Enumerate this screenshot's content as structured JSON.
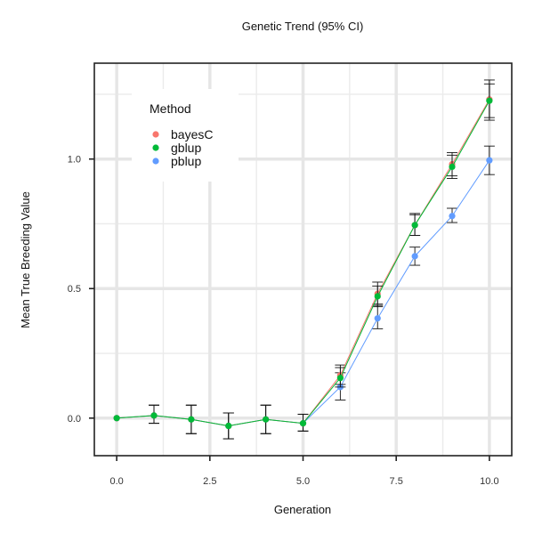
{
  "chart_data": {
    "type": "line",
    "title": "Genetic Trend (95% CI)",
    "xlabel": "Generation",
    "ylabel": "Mean True Breeding Value",
    "xlim": [
      -0.6,
      10.6
    ],
    "ylim": [
      -0.145,
      1.37
    ],
    "xticks": [
      0,
      2.5,
      5,
      7.5,
      10
    ],
    "xtick_labels": [
      "0.0",
      "2.5",
      "5.0",
      "7.5",
      "10.0"
    ],
    "yticks": [
      0,
      0.5,
      1
    ],
    "ytick_labels": [
      "0.0",
      "0.5",
      "1.0"
    ],
    "grid": true,
    "legend_position": "top-left",
    "legend_title": "Method",
    "series": [
      {
        "name": "pblup",
        "color": "#619CFF",
        "x": [
          0,
          1,
          2,
          3,
          4,
          5,
          6,
          7,
          8,
          9,
          10
        ],
        "y": [
          0.0,
          0.01,
          -0.005,
          -0.03,
          -0.005,
          -0.02,
          0.12,
          0.385,
          0.625,
          0.78,
          0.995
        ],
        "ci_low": [
          0.0,
          -0.02,
          -0.06,
          -0.08,
          -0.06,
          -0.05,
          0.07,
          0.345,
          0.59,
          0.755,
          0.94
        ],
        "ci_high": [
          0.0,
          0.05,
          0.05,
          0.02,
          0.05,
          0.015,
          0.175,
          0.435,
          0.66,
          0.81,
          1.05
        ]
      },
      {
        "name": "bayesC",
        "color": "#F8766D",
        "x": [
          0,
          1,
          2,
          3,
          4,
          5,
          6,
          7,
          8,
          9,
          10
        ],
        "y": [
          0.0,
          0.01,
          -0.005,
          -0.03,
          -0.005,
          -0.02,
          0.165,
          0.48,
          0.745,
          0.98,
          1.23
        ],
        "ci_low": [
          0.0,
          -0.02,
          -0.06,
          -0.08,
          -0.06,
          -0.05,
          0.13,
          0.44,
          0.705,
          0.935,
          1.16
        ],
        "ci_high": [
          0.0,
          0.05,
          0.05,
          0.02,
          0.05,
          0.015,
          0.205,
          0.525,
          0.79,
          1.025,
          1.305
        ]
      },
      {
        "name": "gblup",
        "color": "#00BA38",
        "x": [
          0,
          1,
          2,
          3,
          4,
          5,
          6,
          7,
          8,
          9,
          10
        ],
        "y": [
          0.0,
          0.01,
          -0.005,
          -0.03,
          -0.005,
          -0.02,
          0.155,
          0.47,
          0.745,
          0.97,
          1.225
        ],
        "ci_low": [
          0.0,
          -0.02,
          -0.06,
          -0.08,
          -0.06,
          -0.05,
          0.12,
          0.43,
          0.705,
          0.925,
          1.15
        ],
        "ci_high": [
          0.0,
          0.05,
          0.05,
          0.02,
          0.05,
          0.015,
          0.195,
          0.51,
          0.785,
          1.015,
          1.29
        ]
      }
    ],
    "legend_order": [
      "bayesC",
      "gblup",
      "pblup"
    ]
  }
}
